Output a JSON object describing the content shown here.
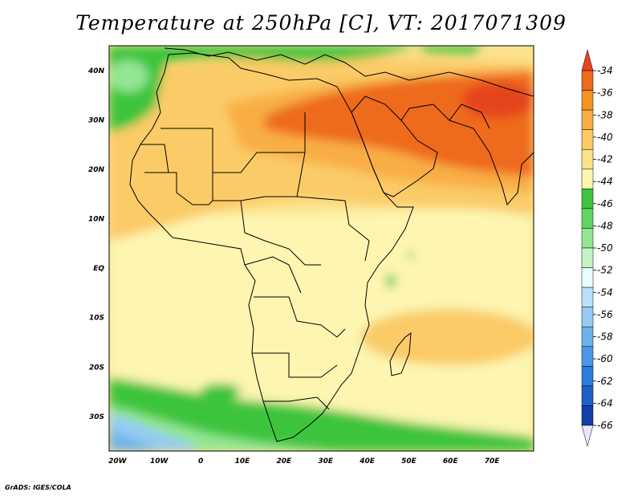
{
  "title": "Temperature at 250hPa [C], VT: 2017071309",
  "credit": "GrADS: IGES/COLA",
  "chart_data": {
    "type": "heatmap",
    "variable": "Temperature",
    "level": "250hPa",
    "units": "C",
    "valid_time": "2017071309",
    "lon_range": [
      -22,
      80
    ],
    "lat_range": [
      -37,
      45
    ],
    "x_ticks": [
      "20W",
      "10W",
      "0",
      "10E",
      "20E",
      "30E",
      "40E",
      "50E",
      "60E",
      "70E"
    ],
    "y_ticks": [
      "40N",
      "30N",
      "20N",
      "10N",
      "EQ",
      "10S",
      "20S",
      "30S"
    ],
    "colorbar": {
      "labels": [
        "-34",
        "-36",
        "-38",
        "-40",
        "-42",
        "-44",
        "-46",
        "-48",
        "-50",
        "-52",
        "-54",
        "-56",
        "-58",
        "-60",
        "-62",
        "-64",
        "-66"
      ],
      "colors": [
        "#e5441e",
        "#ee6a1e",
        "#f59322",
        "#f8ae44",
        "#fbcb68",
        "#fde28c",
        "#fdf5b0",
        "#3ec43e",
        "#62d462",
        "#93e693",
        "#c5f3c5",
        "#e8ffff",
        "#b9e1f9",
        "#95cbf2",
        "#6eb2ed",
        "#4a98e6",
        "#2a7ddc",
        "#1b61c9",
        "#113fa9",
        "#0a1d80"
      ]
    }
  }
}
